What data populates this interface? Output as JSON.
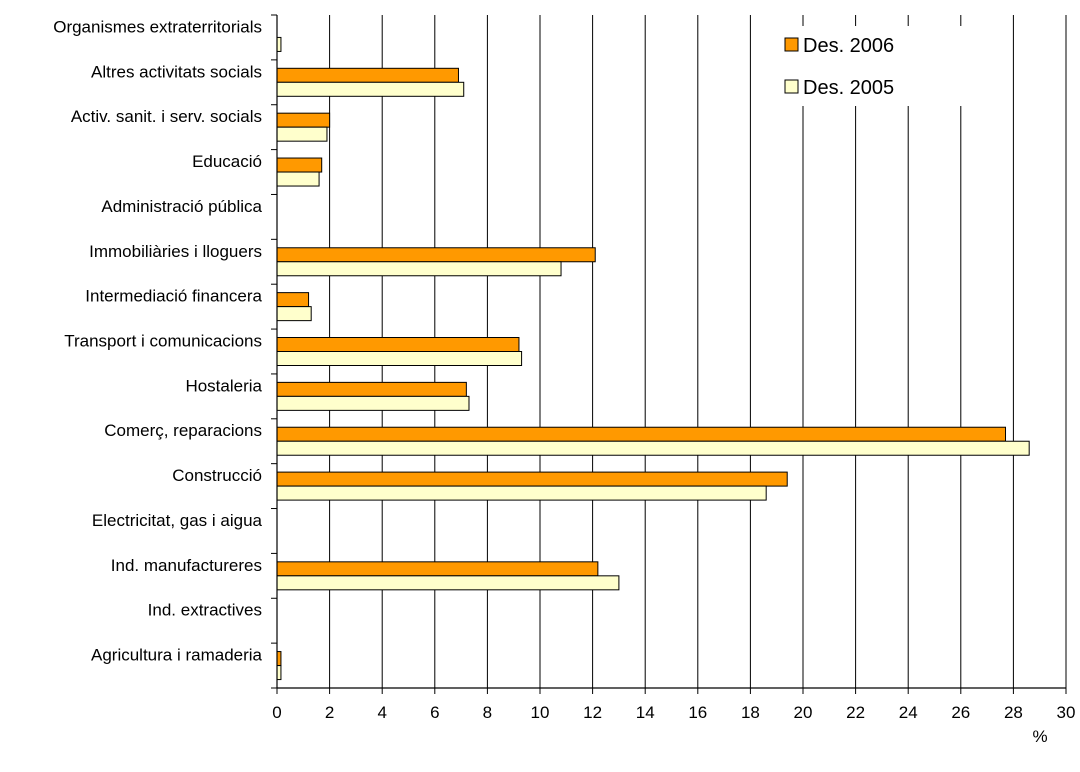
{
  "chart_data": {
    "type": "bar",
    "orientation": "horizontal",
    "title": "",
    "xlabel": "%",
    "ylabel": "",
    "xlim": [
      0,
      30
    ],
    "xticks": [
      0,
      2,
      4,
      6,
      8,
      10,
      12,
      14,
      16,
      18,
      20,
      22,
      24,
      26,
      28,
      30
    ],
    "grid": true,
    "legend_position": "top-right",
    "categories": [
      "Organismes extraterritorials",
      "Altres activitats socials",
      "Activ. sanit. i serv. socials",
      "Educació",
      "Administració pública",
      "Immobiliàries i lloguers",
      "Intermediació financera",
      "Transport i comunicacions",
      "Hostaleria",
      "Comerç, reparacions",
      "Construcció",
      "Electricitat, gas i aigua",
      "Ind. manufactureres",
      "Ind. extractives",
      "Agricultura i ramaderia"
    ],
    "series": [
      {
        "name": "Des. 2006",
        "color": "#ff9900",
        "values": [
          0,
          6.9,
          2.0,
          1.7,
          0,
          12.1,
          1.2,
          9.2,
          7.2,
          27.7,
          19.4,
          0,
          12.2,
          0,
          0.15
        ]
      },
      {
        "name": "Des. 2005",
        "color": "#ffffcc",
        "values": [
          0.15,
          7.1,
          1.9,
          1.6,
          0,
          10.8,
          1.3,
          9.3,
          7.3,
          28.6,
          18.6,
          0,
          13.0,
          0,
          0.15
        ]
      }
    ]
  }
}
